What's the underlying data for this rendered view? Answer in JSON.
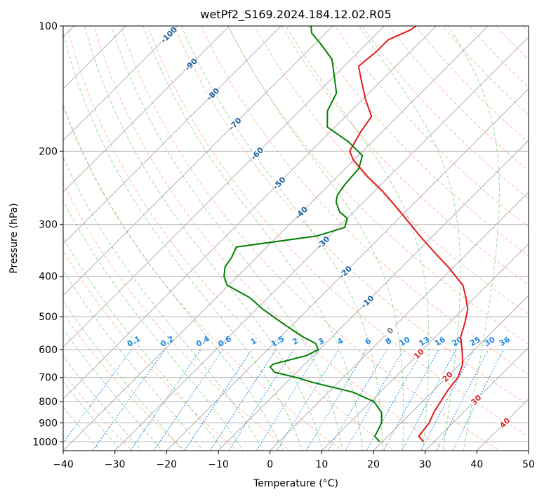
{
  "chart_data": {
    "type": "line",
    "title": "wetPf2_S169.2024.184.12.02.R05",
    "xlabel": "Temperature (°C)",
    "ylabel": "Pressure (hPa)",
    "xlim": [
      -40,
      50
    ],
    "ylim": [
      1050,
      100
    ],
    "y_scale": "log",
    "skew": "45°",
    "grid": true,
    "x_ticks": [
      -40,
      -30,
      -20,
      -10,
      0,
      10,
      20,
      30,
      40,
      50
    ],
    "y_ticks": [
      100,
      200,
      300,
      400,
      500,
      600,
      700,
      800,
      900,
      1000
    ],
    "series": [
      {
        "role": "temperature",
        "color": "#e41a1c",
        "points": [
          [
            1000,
            28.0
          ],
          [
            970,
            26.0
          ],
          [
            900,
            25.4
          ],
          [
            850,
            24.3
          ],
          [
            800,
            23.5
          ],
          [
            750,
            22.7
          ],
          [
            700,
            22.2
          ],
          [
            650,
            20.5
          ],
          [
            600,
            17.6
          ],
          [
            560,
            14.9
          ],
          [
            520,
            13.1
          ],
          [
            480,
            10.9
          ],
          [
            450,
            8.3
          ],
          [
            420,
            5.3
          ],
          [
            400,
            2.2
          ],
          [
            380,
            -1.0
          ],
          [
            350,
            -6.6
          ],
          [
            320,
            -12.5
          ],
          [
            300,
            -16.6
          ],
          [
            270,
            -23.3
          ],
          [
            250,
            -28.3
          ],
          [
            230,
            -34.2
          ],
          [
            210,
            -40.1
          ],
          [
            200,
            -42.5
          ],
          [
            180,
            -44.1
          ],
          [
            165,
            -45.0
          ],
          [
            150,
            -49.5
          ],
          [
            135,
            -54.0
          ],
          [
            125,
            -57.2
          ],
          [
            115,
            -56.6
          ],
          [
            108,
            -56.6
          ],
          [
            102,
            -54.1
          ],
          [
            100,
            -53.9
          ]
        ]
      },
      {
        "role": "dewpoint",
        "color": "#008000",
        "points": [
          [
            1000,
            19.5
          ],
          [
            970,
            17.5
          ],
          [
            900,
            16.2
          ],
          [
            850,
            14.2
          ],
          [
            800,
            10.6
          ],
          [
            760,
            4.8
          ],
          [
            720,
            -4.8
          ],
          [
            700,
            -9.1
          ],
          [
            680,
            -14.3
          ],
          [
            660,
            -16.2
          ],
          [
            650,
            -16.1
          ],
          [
            620,
            -11.3
          ],
          [
            600,
            -10.2
          ],
          [
            580,
            -11.9
          ],
          [
            560,
            -15.5
          ],
          [
            520,
            -22.0
          ],
          [
            480,
            -28.7
          ],
          [
            450,
            -33.5
          ],
          [
            420,
            -40.3
          ],
          [
            400,
            -42.6
          ],
          [
            380,
            -44.2
          ],
          [
            360,
            -44.8
          ],
          [
            340,
            -45.9
          ],
          [
            320,
            -32.5
          ],
          [
            305,
            -28.7
          ],
          [
            290,
            -30.0
          ],
          [
            280,
            -32.7
          ],
          [
            265,
            -35.3
          ],
          [
            255,
            -36.4
          ],
          [
            240,
            -37.0
          ],
          [
            220,
            -37.4
          ],
          [
            205,
            -39.2
          ],
          [
            190,
            -44.5
          ],
          [
            175,
            -51.5
          ],
          [
            160,
            -54.6
          ],
          [
            145,
            -56.3
          ],
          [
            130,
            -60.6
          ],
          [
            120,
            -63.8
          ],
          [
            110,
            -69.1
          ],
          [
            104,
            -72.7
          ],
          [
            100,
            -74.2
          ]
        ]
      }
    ],
    "isotherm_labels": [
      "-100",
      "-90",
      "-80",
      "-70",
      "-60",
      "-50",
      "-40",
      "-30",
      "-20",
      "-10",
      "0",
      "10",
      "20",
      "30",
      "40"
    ],
    "mixing_ratio_labels": [
      "0.1",
      "0.2",
      "0.4",
      "0.6",
      "1",
      "1.5",
      "2",
      "3",
      "4",
      "6",
      "8",
      "10",
      "13",
      "16",
      "20",
      "25",
      "30",
      "36"
    ],
    "colors": {
      "skewed_isotherm": "#b0b0b0",
      "isotherm_label_cold": "#1f5f9e",
      "isotherm_label_zero": "#7a7a7a",
      "isotherm_label_warm": "#d62728",
      "dry_adiabat": "#ffa07a",
      "moist_adiabat": "#7cc47c",
      "mixing_ratio": "#1e88e5",
      "frame": "#000000"
    }
  }
}
